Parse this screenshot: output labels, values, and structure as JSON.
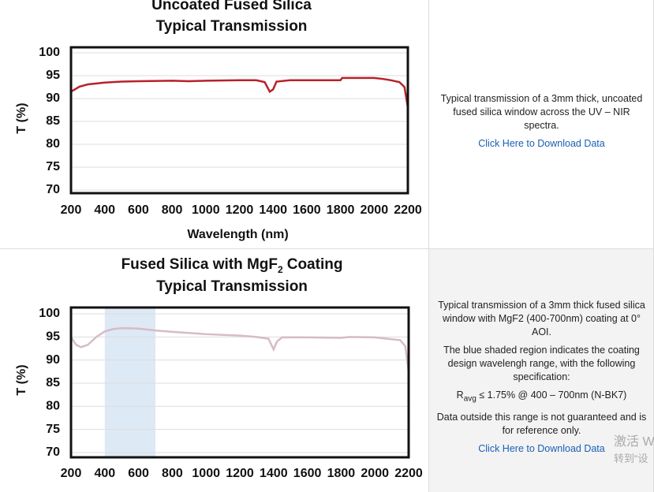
{
  "chart_data": [
    {
      "type": "line",
      "title": {
        "line1": "Uncoated Fused Silica",
        "line2": "Typical Transmission"
      },
      "y_label": "T (%)",
      "x_label": "Wavelength (nm)",
      "x": [
        200,
        250,
        300,
        400,
        500,
        600,
        800,
        900,
        1000,
        1200,
        1300,
        1350,
        1380,
        1400,
        1420,
        1500,
        1600,
        1800,
        1810,
        2000,
        2050,
        2100,
        2150,
        2180,
        2200
      ],
      "values": [
        91.5,
        92.6,
        93.1,
        93.5,
        93.7,
        93.8,
        93.9,
        93.8,
        93.9,
        94.0,
        94.0,
        93.6,
        91.5,
        92.0,
        93.7,
        94.0,
        94.0,
        94.0,
        94.5,
        94.5,
        94.3,
        94.0,
        93.6,
        92.5,
        88.0
      ],
      "color": "#b8222a",
      "xlim": [
        200,
        2200
      ],
      "xticks": [
        200,
        400,
        600,
        800,
        1000,
        1200,
        1400,
        1600,
        1800,
        2000,
        2200
      ],
      "ylim": [
        70,
        100
      ],
      "yticks": [
        70,
        75,
        80,
        85,
        90,
        95,
        100
      ],
      "grid": true
    },
    {
      "type": "line",
      "title": {
        "main": "Fused Silica with MgF",
        "subscript": "2",
        "rest": "Coating",
        "line2": "Typical Transmission"
      },
      "y_label": "T (%)",
      "x": [
        200,
        230,
        260,
        300,
        350,
        400,
        450,
        500,
        600,
        700,
        800,
        1000,
        1200,
        1300,
        1370,
        1400,
        1420,
        1450,
        1600,
        1800,
        1850,
        2000,
        2100,
        2150,
        2180,
        2200
      ],
      "values": [
        95.0,
        93.3,
        92.8,
        93.3,
        95.0,
        96.2,
        96.7,
        96.9,
        96.8,
        96.4,
        96.1,
        95.6,
        95.3,
        95.0,
        94.6,
        92.3,
        94.0,
        94.9,
        94.9,
        94.8,
        95.0,
        94.9,
        94.5,
        94.3,
        93.0,
        87.5
      ],
      "color": "#d6bcc4",
      "shaded_range": [
        400,
        700
      ],
      "shade_color": "#dde9f5",
      "xlim": [
        200,
        2200
      ],
      "xticks": [
        200,
        400,
        600,
        800,
        1000,
        1200,
        1400,
        1600,
        1800,
        2000,
        2200
      ],
      "ylim": [
        70,
        100
      ],
      "yticks": [
        70,
        75,
        80,
        85,
        90,
        95,
        100
      ],
      "grid": true
    }
  ],
  "descriptions": [
    {
      "text": "Typical transmission of a 3mm thick, uncoated fused silica window across the UV – NIR spectra.",
      "link": "Click Here to Download Data"
    },
    {
      "p1": "Typical transmission of a 3mm thick fused silica window with MgF2 (400-700nm) coating at 0° AOI.",
      "p2": "The blue shaded region indicates the coating design wavelengh range, with the following specification:",
      "spec": {
        "before": "R",
        "sub": "avg",
        "after": "≤ 1.75% @ 400 – 700nm (N-BK7)"
      },
      "p4": "Data outside this range is not guaranteed and is for reference only.",
      "link": "Click Here to Download Data"
    }
  ],
  "watermark": [
    "激活 W",
    "转到“设"
  ]
}
